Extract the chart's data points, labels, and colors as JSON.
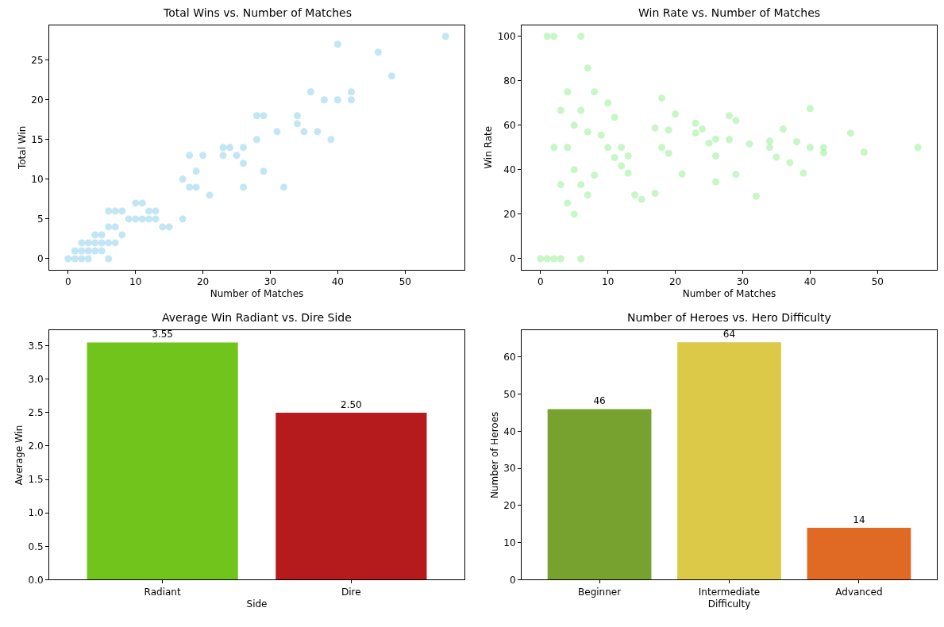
{
  "chart_data": [
    {
      "type": "scatter",
      "title": "Total Wins vs. Number of Matches",
      "xlabel": "Number of Matches",
      "ylabel": "Total Win",
      "color": "#87ceeb",
      "marker": "circle",
      "x": [
        0,
        1,
        2,
        3,
        6,
        1,
        2,
        3,
        4,
        5,
        2,
        3,
        4,
        5,
        6,
        7,
        4,
        5,
        8,
        6,
        7,
        9,
        10,
        11,
        12,
        13,
        17,
        6,
        7,
        8,
        12,
        13,
        10,
        11,
        14,
        15,
        21,
        18,
        19,
        26,
        32,
        17,
        19,
        29,
        26,
        18,
        20,
        23,
        25,
        23,
        24,
        26,
        28,
        39,
        31,
        35,
        37,
        34,
        28,
        29,
        34,
        38,
        40,
        42,
        36,
        42,
        48,
        46,
        40,
        56
      ],
      "values": [
        0,
        0,
        0,
        0,
        0,
        1,
        1,
        1,
        1,
        1,
        2,
        2,
        2,
        2,
        2,
        2,
        3,
        3,
        3,
        4,
        4,
        5,
        5,
        5,
        5,
        5,
        5,
        6,
        6,
        6,
        6,
        6,
        7,
        7,
        4,
        4,
        8,
        9,
        9,
        9,
        9,
        10,
        11,
        11,
        12,
        13,
        13,
        13,
        13,
        14,
        14,
        14,
        15,
        15,
        16,
        16,
        16,
        17,
        18,
        18,
        18,
        20,
        20,
        20,
        21,
        21,
        23,
        26,
        27,
        28
      ],
      "xlim": [
        -2.8,
        58.8
      ],
      "xticks": [
        0,
        10,
        20,
        30,
        40,
        50
      ],
      "ylim": [
        -1.4,
        29.4
      ],
      "yticks": [
        0,
        5,
        10,
        15,
        20,
        25
      ]
    },
    {
      "type": "scatter",
      "title": "Win Rate vs. Number of Matches",
      "xlabel": "Number of Matches",
      "ylabel": "Win Rate",
      "color": "#90ee90",
      "marker": "circle",
      "x": [
        0,
        1,
        2,
        3,
        6,
        1,
        2,
        3,
        4,
        5,
        2,
        3,
        4,
        5,
        6,
        7,
        4,
        5,
        8,
        6,
        7,
        9,
        10,
        11,
        12,
        13,
        17,
        6,
        7,
        8,
        12,
        13,
        10,
        11,
        14,
        15,
        21,
        18,
        19,
        26,
        32,
        17,
        19,
        29,
        26,
        18,
        20,
        23,
        25,
        23,
        24,
        26,
        28,
        39,
        31,
        35,
        37,
        34,
        28,
        29,
        34,
        38,
        40,
        42,
        36,
        42,
        48,
        46,
        40,
        56
      ],
      "values": [
        0,
        0,
        0,
        0,
        0,
        100,
        50,
        33.3,
        25,
        20,
        100,
        66.7,
        50,
        40,
        33.3,
        28.6,
        75,
        60,
        37.5,
        66.7,
        57.1,
        55.6,
        50,
        45.5,
        41.7,
        38.5,
        29.4,
        100,
        85.7,
        75,
        50,
        46.2,
        70,
        63.6,
        28.6,
        26.7,
        38.1,
        50,
        47.4,
        34.6,
        28.1,
        58.8,
        57.9,
        37.9,
        46.2,
        72.2,
        65,
        56.5,
        52,
        60.9,
        58.3,
        53.8,
        53.6,
        38.5,
        51.6,
        45.7,
        43.2,
        50,
        64.3,
        62.1,
        52.9,
        52.6,
        50,
        47.6,
        58.3,
        50,
        47.9,
        56.5,
        67.5,
        50
      ],
      "xlim": [
        -2.8,
        58.8
      ],
      "xticks": [
        0,
        10,
        20,
        30,
        40,
        50
      ],
      "ylim": [
        -5,
        105
      ],
      "yticks": [
        0,
        20,
        40,
        60,
        80,
        100
      ]
    },
    {
      "type": "bar",
      "title": "Average Win Radiant vs. Dire Side",
      "xlabel": "Side",
      "ylabel": "Average Win",
      "categories": [
        "Radiant",
        "Dire"
      ],
      "values": [
        3.55,
        2.5
      ],
      "colors": [
        "#70c41c",
        "#b51a1c"
      ],
      "value_labels": [
        "3.55",
        "2.50"
      ],
      "ylim": [
        0,
        3.73
      ],
      "yticks": [
        {
          "value": 0,
          "label": "0.0"
        },
        {
          "value": 0.5,
          "label": "0.5"
        },
        {
          "value": 1,
          "label": "1.0"
        },
        {
          "value": 1.5,
          "label": "1.5"
        },
        {
          "value": 2,
          "label": "2.0"
        },
        {
          "value": 2.5,
          "label": "2.5"
        },
        {
          "value": 3,
          "label": "3.0"
        },
        {
          "value": 3.5,
          "label": "3.5"
        }
      ]
    },
    {
      "type": "bar",
      "title": "Number of Heroes vs. Hero Difficulty",
      "xlabel": "Difficulty",
      "ylabel": "Number of Heroes",
      "categories": [
        "Beginner",
        "Intermediate",
        "Advanced"
      ],
      "values": [
        46,
        64,
        14
      ],
      "colors": [
        "#78a22f",
        "#dcc947",
        "#e06a23"
      ],
      "data_labels": true,
      "ylim": [
        0,
        67.2
      ],
      "yticks": [
        0,
        10,
        20,
        30,
        40,
        50,
        60
      ]
    }
  ]
}
